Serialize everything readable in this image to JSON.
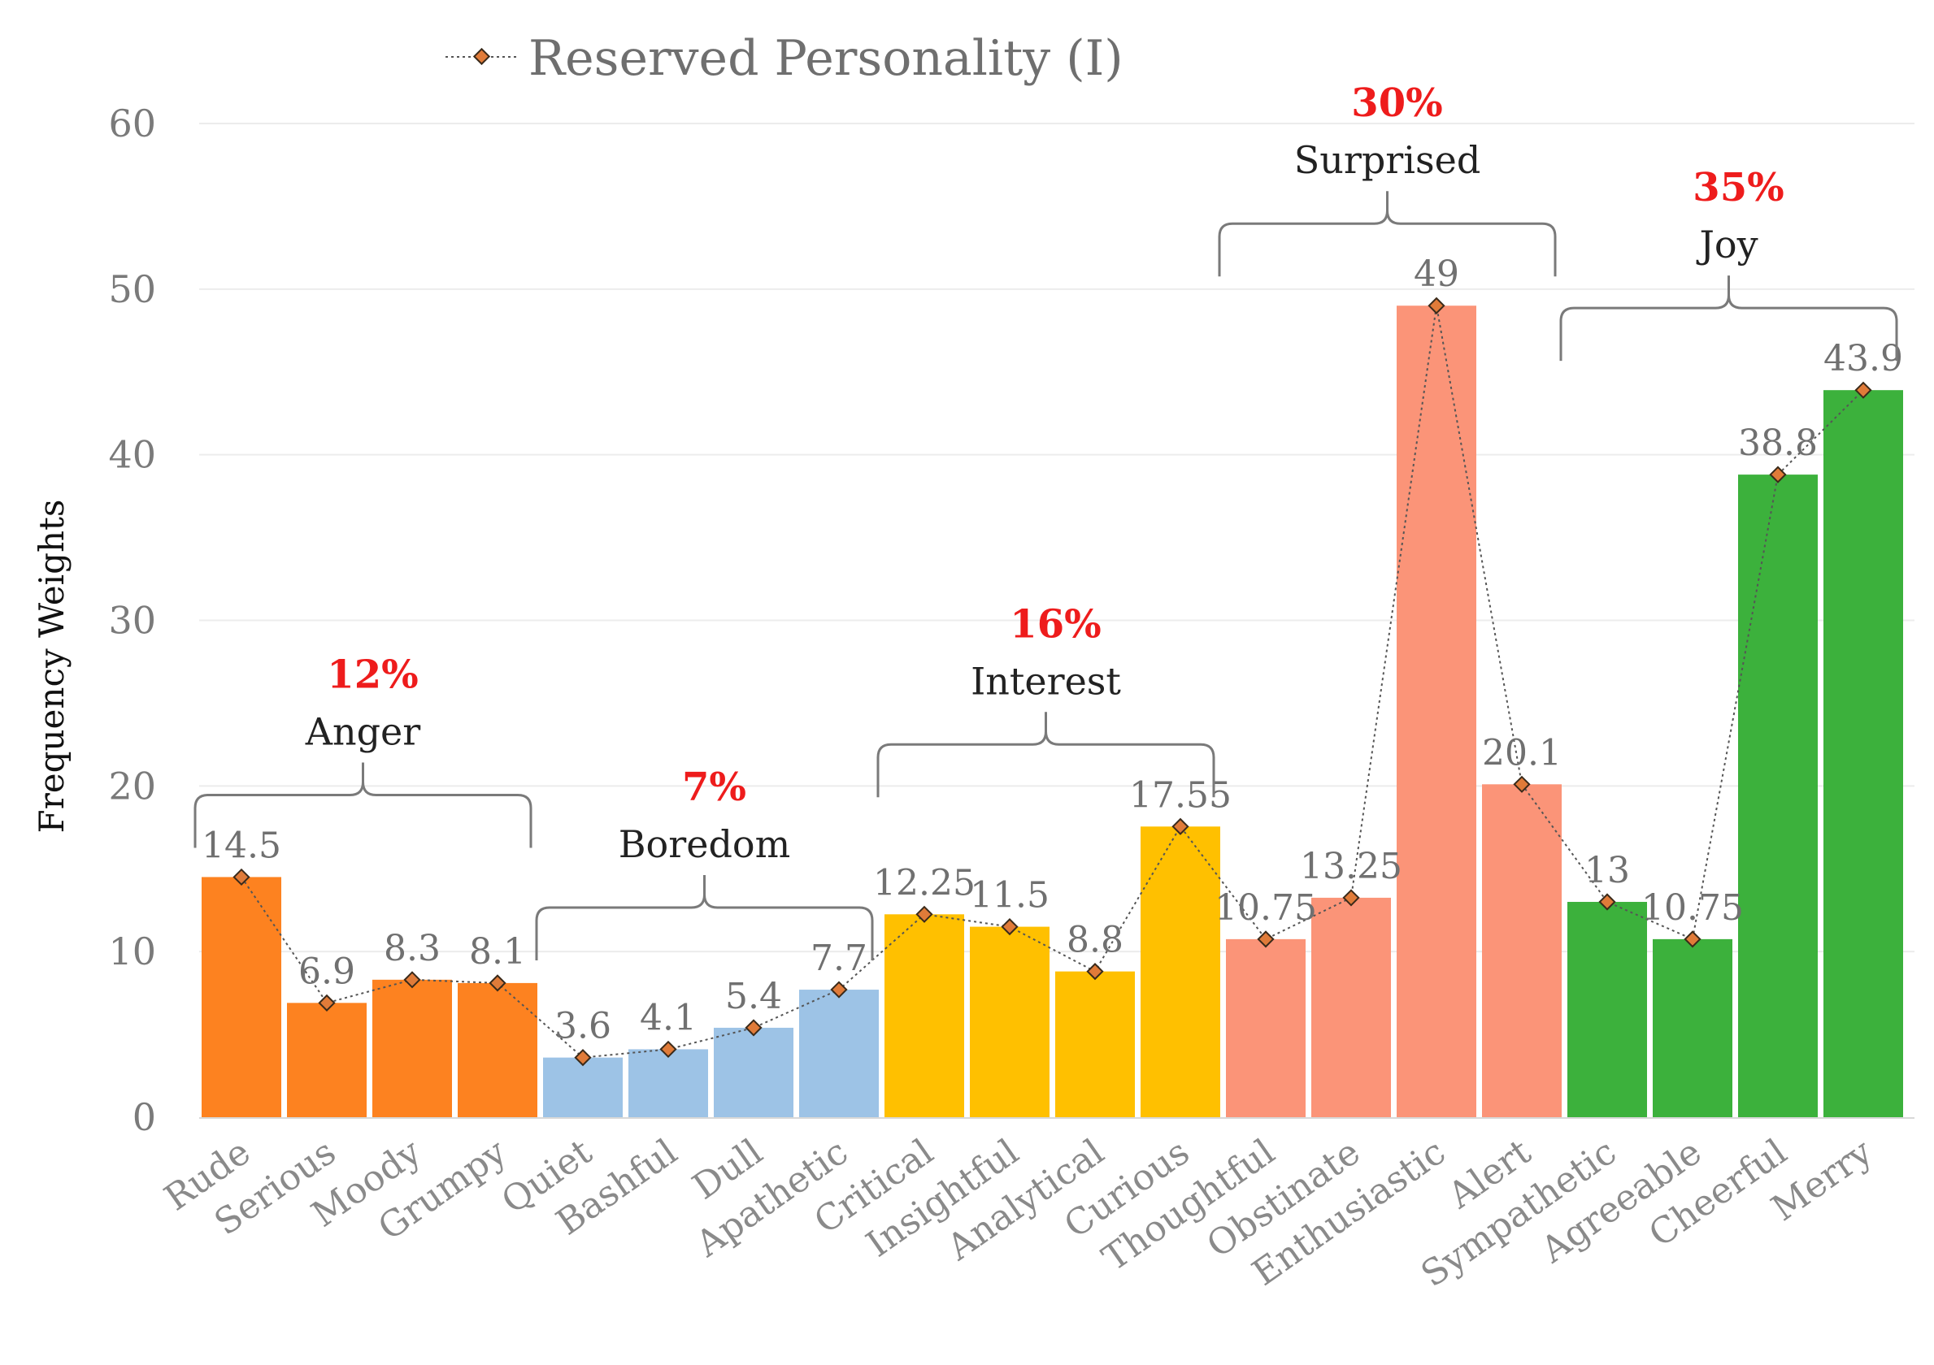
{
  "chart_data": {
    "type": "bar",
    "ylabel": "Frequency Weights",
    "xlabel": "",
    "ylim": [
      0,
      60
    ],
    "yticks": [
      0,
      10,
      20,
      30,
      40,
      50,
      60
    ],
    "grid": true,
    "legend": {
      "position": "top",
      "entries": [
        {
          "name": "Reserved Personality (I)",
          "marker": "diamond",
          "line": "dotted"
        }
      ]
    },
    "categories": [
      "Rude",
      "Serious",
      "Moody",
      "Grumpy",
      "Quiet",
      "Bashful",
      "Dull",
      "Apathetic",
      "Critical",
      "Insightful",
      "Analytical",
      "Curious",
      "Thoughtful",
      "Obstinate",
      "Enthusiastic",
      "Alert",
      "Sympathetic",
      "Agreeable",
      "Cheerful",
      "Merry"
    ],
    "series": [
      {
        "name": "Reserved Personality (I)",
        "values": [
          14.5,
          6.9,
          8.3,
          8.1,
          3.6,
          4.1,
          5.4,
          7.7,
          12.25,
          11.5,
          8.8,
          17.55,
          10.75,
          13.25,
          49,
          20.1,
          13,
          10.75,
          38.8,
          43.9
        ],
        "labels": [
          "14.5",
          "6.9",
          "8.3",
          "8.1",
          "3.6",
          "4.1",
          "5.4",
          "7.7",
          "12.25",
          "11.5",
          "8.8",
          "17.55",
          "10.75",
          "13.25",
          "49",
          "20.1",
          "13",
          "10.75",
          "38.8",
          "43.9"
        ]
      }
    ],
    "groups": [
      {
        "name": "Anger",
        "percent": "12%",
        "start": 0,
        "end": 3,
        "color": "#fd8220"
      },
      {
        "name": "Boredom",
        "percent": "7%",
        "start": 4,
        "end": 7,
        "color": "#9dc3e6"
      },
      {
        "name": "Interest",
        "percent": "16%",
        "start": 8,
        "end": 11,
        "color": "#ffc000"
      },
      {
        "name": "Surprised",
        "percent": "30%",
        "start": 12,
        "end": 15,
        "color": "#fb9478"
      },
      {
        "name": "Joy",
        "percent": "35%",
        "start": 16,
        "end": 19,
        "color": "#3cb13c"
      }
    ],
    "colors": {
      "marker_fill": "#e07b39",
      "marker_stroke": "#3a2a1a",
      "percent_text": "#ee1c1c"
    }
  }
}
